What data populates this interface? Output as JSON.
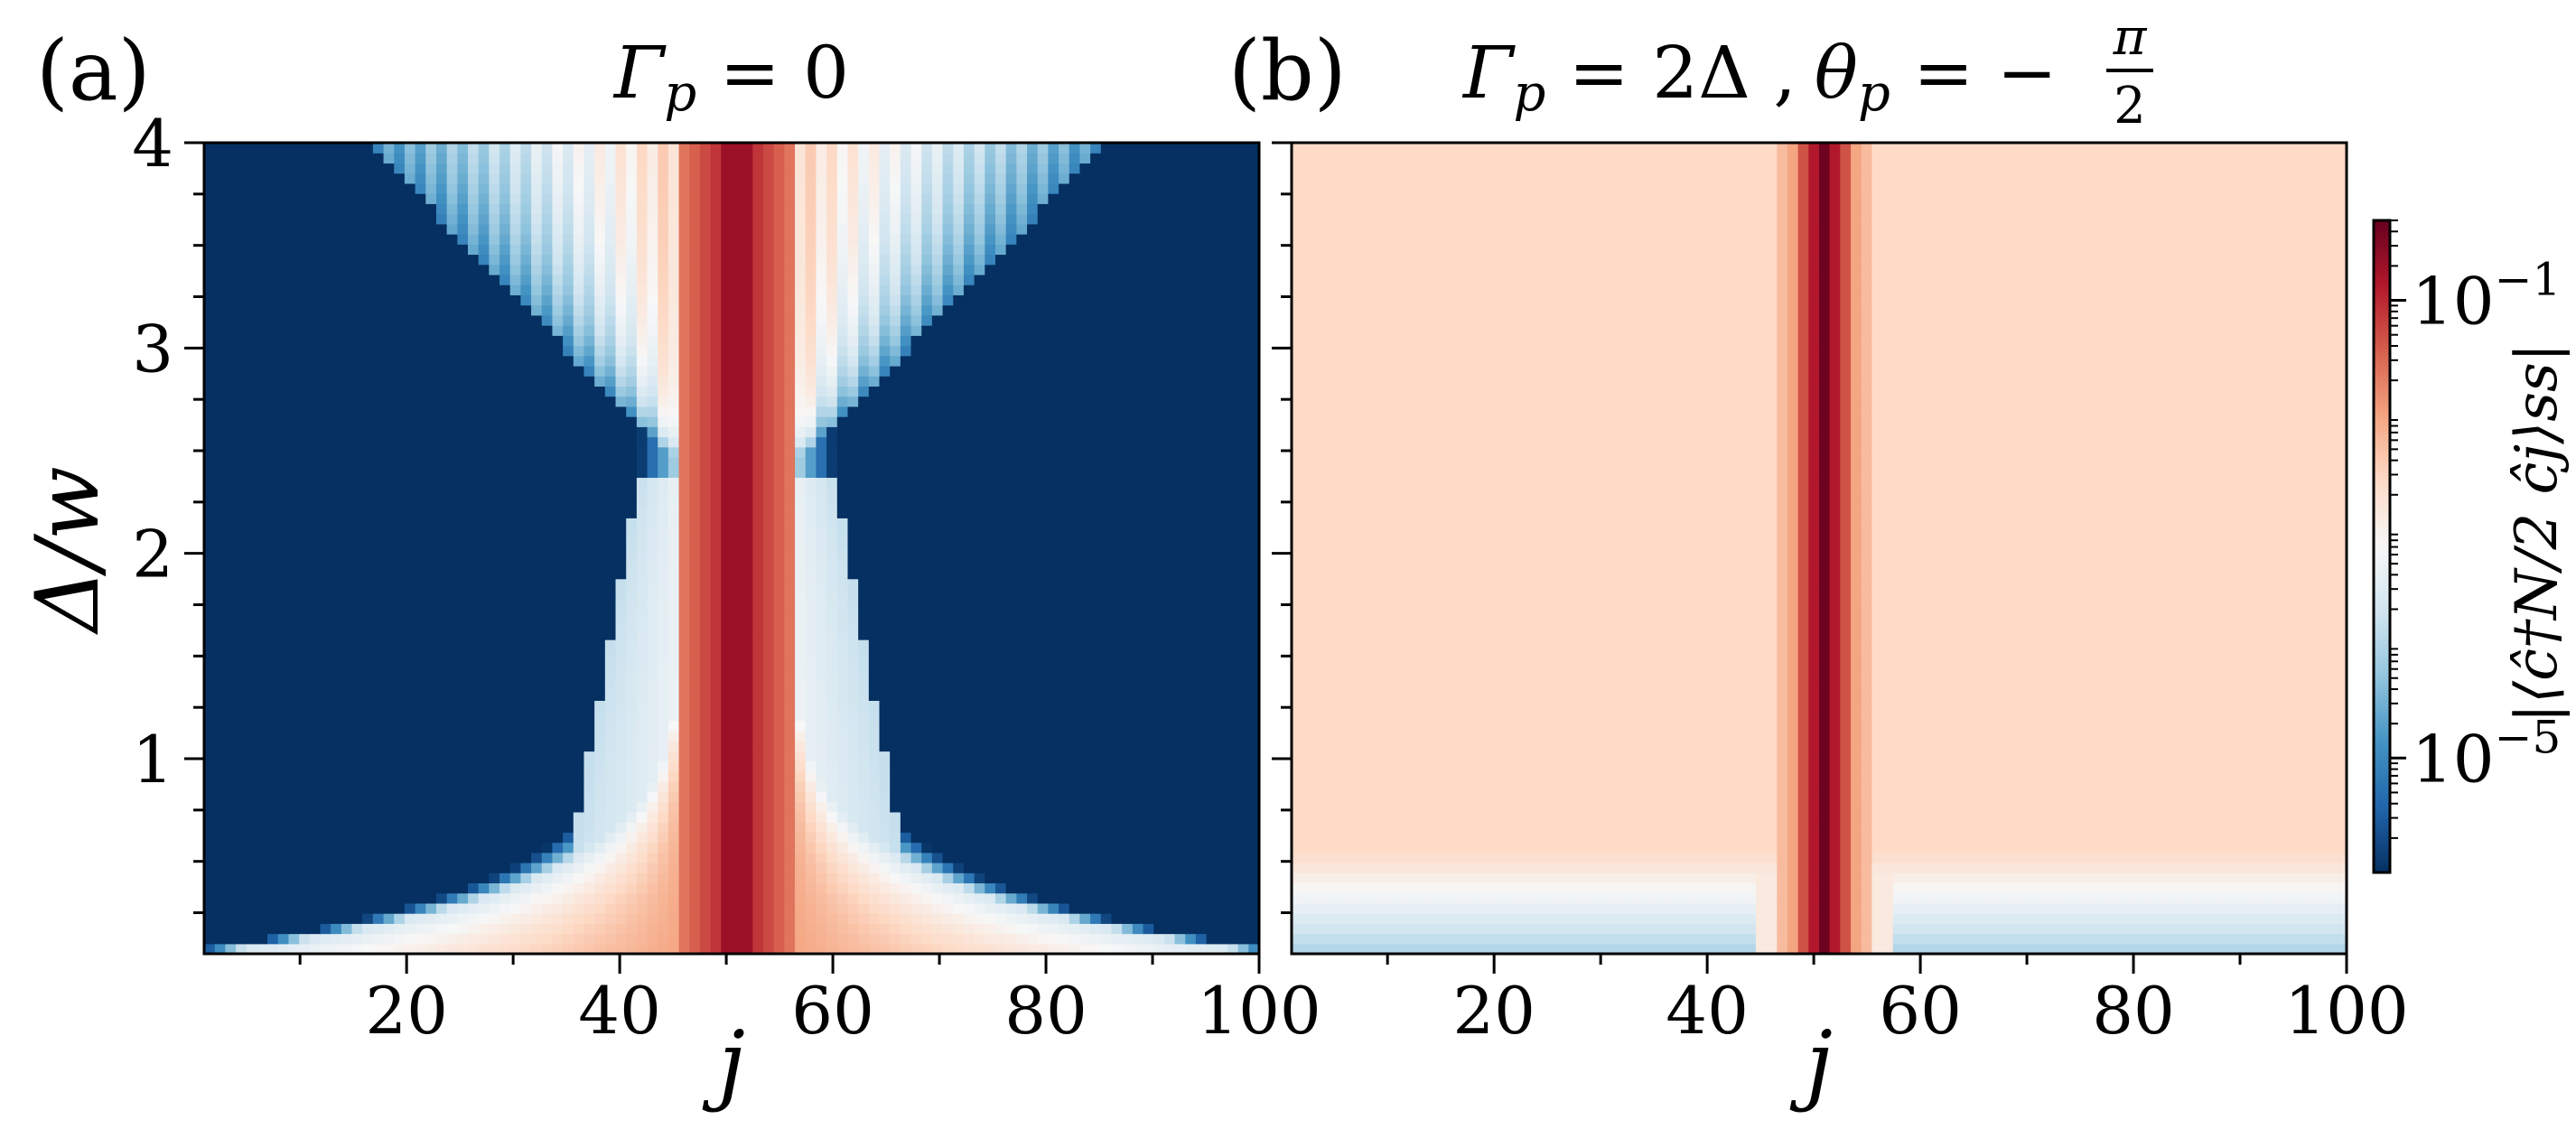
{
  "chart_data": [
    {
      "type": "heatmap",
      "panel_label": "(a)",
      "title": "Γp = 0",
      "title_parts": {
        "symbol": "Γ",
        "subscript": "p",
        "rest": " = 0"
      },
      "xlabel": "j",
      "ylabel": "Δ/w",
      "xlim": [
        1,
        100
      ],
      "ylim": [
        0.05,
        4
      ],
      "x_ticks": [
        20,
        40,
        60,
        80,
        100
      ],
      "x_tick_labels": [
        "20",
        "40",
        "60",
        "80",
        "100"
      ],
      "y_ticks": [
        1,
        2,
        3,
        4
      ],
      "y_tick_labels": [
        "1",
        "2",
        "3",
        "4"
      ],
      "center_site": 51,
      "features": {
        "central_band_half_width": 5,
        "background": "dark-blue",
        "kink_levels": [
          0.6,
          0.85,
          1.0,
          1.2,
          1.4,
          1.6,
          1.85,
          2.1,
          2.3
        ]
      }
    },
    {
      "type": "heatmap",
      "panel_label": "(b)",
      "title": "Γp = 2Δ , θp = −π/2",
      "title_parts": {
        "gamma": "Γ",
        "gamma_sub": "p",
        "gamma_rest": " = 2Δ ,",
        "theta": "θ",
        "theta_sub": "p",
        "theta_rest": " = −",
        "frac_num": "π",
        "frac_den": "2"
      },
      "xlabel": "j",
      "ylabel": "",
      "xlim": [
        1,
        100
      ],
      "ylim": [
        0.05,
        4
      ],
      "x_ticks": [
        20,
        40,
        60,
        80,
        100
      ],
      "x_tick_labels": [
        "20",
        "40",
        "60",
        "80",
        "100"
      ],
      "center_site": 51,
      "features": {
        "background": "light-peach",
        "dip_level": 1.55
      }
    }
  ],
  "colorbar": {
    "scale": "log",
    "colormap": "RdBu_r",
    "range": [
      1e-06,
      0.5
    ],
    "ticks": [
      0.1,
      1e-05
    ],
    "tick_labels": [
      {
        "base": "10",
        "exp": "−1"
      },
      {
        "base": "10",
        "exp": "−5"
      }
    ],
    "label": "|⟨ĉ†N/2 ĉj⟩ss|"
  },
  "colors": {
    "dark_red": "#67001f",
    "red": "#b2182b",
    "orange_red": "#d6604d",
    "salmon": "#f4a582",
    "peach": "#fddbc7",
    "white": "#f7f7f7",
    "light_blue": "#d1e5f0",
    "sky_blue": "#92c5de",
    "blue": "#4393c3",
    "mid_blue": "#2166ac",
    "dark_blue": "#053061"
  }
}
